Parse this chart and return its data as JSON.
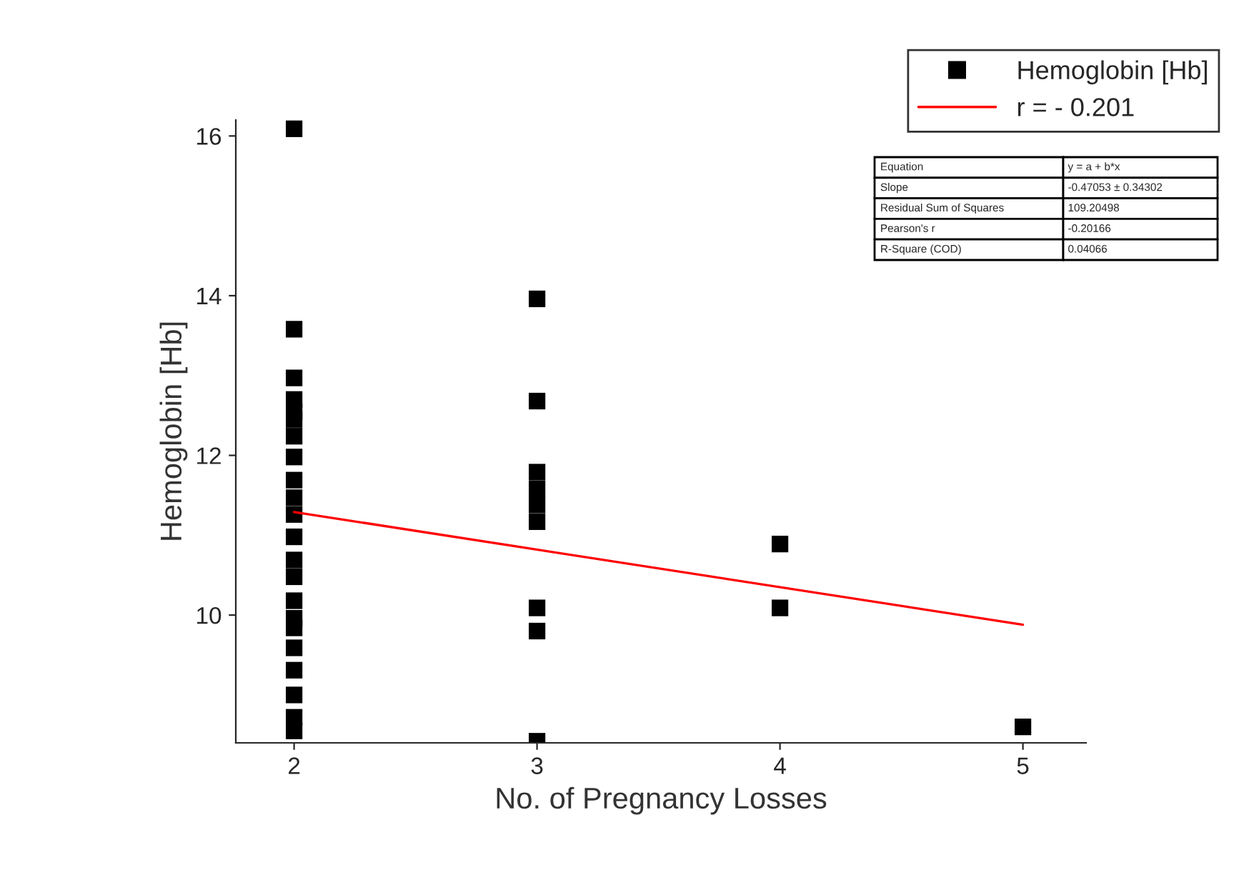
{
  "chart_data": {
    "type": "scatter",
    "xlabel": "No. of Pregnancy Losses",
    "ylabel": "Hemoglobin [Hb]",
    "xlim": [
      1.76,
      5.26
    ],
    "xticks": [
      2,
      3,
      4,
      5
    ],
    "ylim": [
      8.4,
      16.2
    ],
    "yticks": [
      10,
      12,
      14,
      16
    ],
    "legend": "top right",
    "grid": false,
    "series": [
      {
        "name": "Hemoglobin [Hb]",
        "marker": "square",
        "color": "#000000",
        "x": [
          2,
          2,
          2,
          2,
          2,
          2,
          2,
          2,
          2,
          2,
          2,
          2,
          2,
          2,
          2,
          2,
          2,
          2,
          2,
          2,
          2,
          2,
          3,
          3,
          3,
          3,
          3,
          3,
          3,
          3,
          3,
          4,
          4,
          5
        ],
        "values": [
          16.09,
          13.58,
          12.97,
          12.7,
          12.55,
          12.45,
          12.24,
          11.98,
          11.69,
          11.47,
          11.26,
          10.98,
          10.69,
          10.48,
          10.18,
          9.96,
          9.84,
          9.59,
          9.31,
          9.0,
          8.72,
          8.55,
          13.96,
          12.68,
          11.79,
          11.58,
          11.38,
          11.17,
          10.09,
          9.8,
          8.42,
          10.89,
          10.09,
          8.6
        ]
      },
      {
        "name": "r = - 0.201",
        "type": "line",
        "marker": "none",
        "color": "#ff0000",
        "x": [
          2,
          5
        ],
        "values": [
          11.29,
          9.88
        ]
      }
    ],
    "annotations": [
      "Equation",
      "y = a + b*x",
      "Slope",
      "-0.47053 ± 0.34302",
      "Residual Sum of Squares",
      "109.20498",
      "Pearson's r",
      "-0.20166",
      "R-Square (COD)",
      "0.04066"
    ]
  }
}
